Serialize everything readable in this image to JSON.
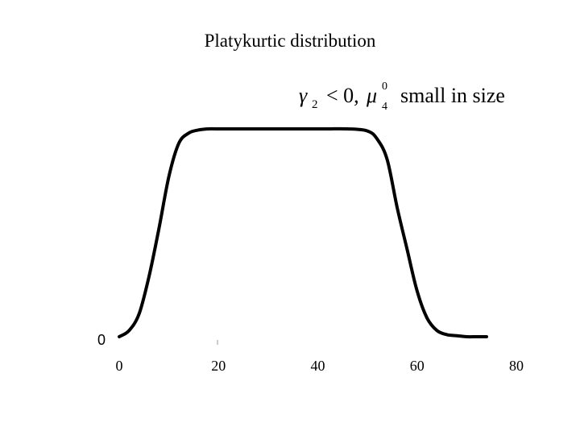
{
  "chart_data": {
    "type": "line",
    "title": "Platykurtic distribution",
    "xlabel": "",
    "ylabel": "",
    "xlim": [
      0,
      80
    ],
    "x_ticks": [
      "0",
      "20",
      "40",
      "60",
      "80"
    ],
    "y_ticks": [
      "0"
    ],
    "annotation": {
      "gamma": "γ",
      "gamma_sub": "2",
      "relation": "< 0,",
      "mu": "μ",
      "mu_sup": "0",
      "mu_sub": "4",
      "text": "small in size"
    },
    "series": [
      {
        "x": [
          0,
          2,
          4,
          6,
          8,
          10,
          12,
          14,
          16,
          18,
          20,
          22,
          26,
          30,
          34,
          38,
          42,
          46,
          50,
          52,
          54,
          56,
          58,
          60,
          62,
          64,
          66,
          68,
          70,
          72,
          74
        ],
        "values": [
          0.0,
          0.03,
          0.11,
          0.29,
          0.52,
          0.77,
          0.93,
          0.98,
          0.995,
          1.0,
          1.0,
          1.0,
          1.0,
          1.0,
          1.0,
          1.0,
          1.0,
          1.0,
          0.99,
          0.95,
          0.85,
          0.62,
          0.42,
          0.22,
          0.09,
          0.03,
          0.01,
          0.005,
          0.0,
          0.0,
          0.0
        ]
      }
    ],
    "grid": false,
    "legend": "none"
  }
}
